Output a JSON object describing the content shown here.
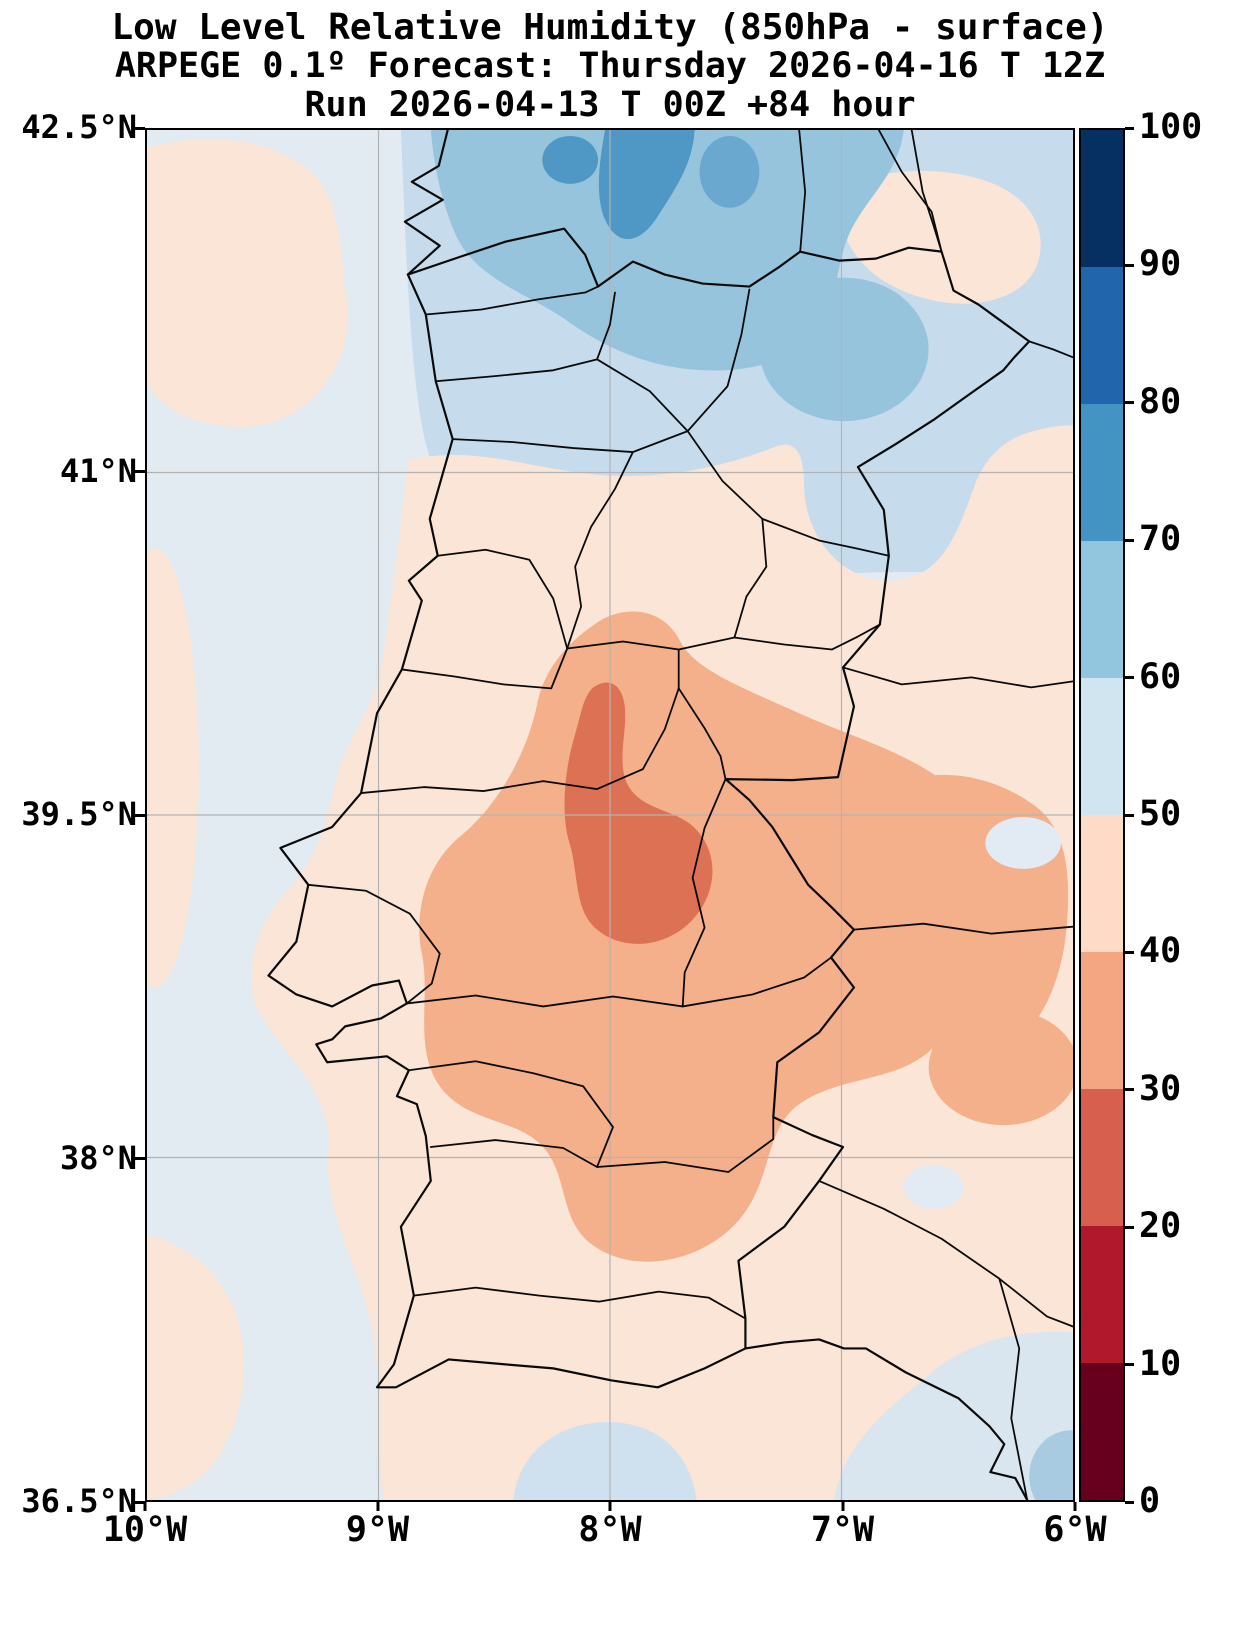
{
  "title": {
    "line1": "Low Level Relative Humidity (850hPa - surface)",
    "line2": "ARPEGE 0.1º Forecast: Thursday 2026-04-16 T 12Z",
    "line3": "Run 2026-04-13 T 00Z +84 hour"
  },
  "chart_data": {
    "type": "heatmap",
    "title": "Low Level Relative Humidity (850hPa - surface)",
    "model": "ARPEGE 0.1º",
    "valid_time": "Thursday 2026-04-16 T 12Z",
    "run": "2026-04-13 T 00Z",
    "lead_hours": "+84 hour",
    "units": "%",
    "region": "Portugal and western Spain",
    "x_axis": {
      "ticks": [
        "10°W",
        "9°W",
        "8°W",
        "7°W",
        "6°W"
      ],
      "range_deg_lon": [
        -10,
        -6
      ]
    },
    "y_axis": {
      "ticks": [
        "42.5°N",
        "41°N",
        "39.5°N",
        "38°N",
        "36.5°N"
      ],
      "range_deg_lat": [
        36.5,
        42.5
      ]
    },
    "colorbar": {
      "ticks": [
        0,
        10,
        20,
        30,
        40,
        50,
        60,
        70,
        80,
        90,
        100
      ],
      "range": [
        0,
        100
      ],
      "colors": [
        "#67001f",
        "#b2182b",
        "#d6604d",
        "#f4a582",
        "#fddbc7",
        "#d1e5f0",
        "#92c5de",
        "#4393c3",
        "#2166ac",
        "#053061"
      ]
    },
    "grid": true,
    "legend_position": "right",
    "field_readings": [
      {
        "area": "NW Iberia / Minho-Douro valley (north of 41.3N)",
        "rh_percent": "60-80"
      },
      {
        "area": "dark blue streaks near 8.2W, 42.2-42.5N",
        "rh_percent": "80-90"
      },
      {
        "area": "Atlantic ocean west of coast",
        "rh_percent": "50-60"
      },
      {
        "area": "scattered ocean patches near 10W 42N and along left edge",
        "rh_percent": "40-50"
      },
      {
        "area": "central interior Portugal / Tejo-Alto Alentejo",
        "rh_percent": "30-40"
      },
      {
        "area": "driest core near 8W-7.7W, 39-39.6N",
        "rh_percent": "20-30"
      },
      {
        "area": "southern Portugal, Algarve and mid Spain strip",
        "rh_percent": "40-50"
      },
      {
        "area": "SW Andalusia coast / bottom-right corner",
        "rh_percent": "50-60"
      }
    ]
  },
  "map": {
    "gridline_color": "#b3b3b3",
    "border_color": "#0a0a0a",
    "ocean_fill": "#e2ebf2"
  }
}
